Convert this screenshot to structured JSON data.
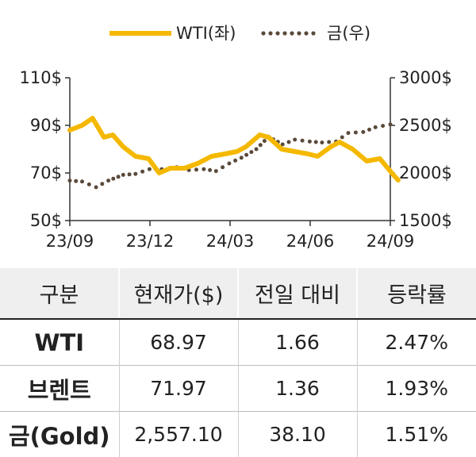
{
  "chart_data": {
    "type": "line",
    "x_labels": [
      "23/09",
      "23/12",
      "24/03",
      "24/06",
      "24/09"
    ],
    "y_left": {
      "ticks": [
        "110$",
        "90$",
        "70$",
        "50$"
      ],
      "range": [
        50,
        110
      ]
    },
    "y_right": {
      "ticks": [
        "3000$",
        "2500$",
        "2000$",
        "1500$"
      ],
      "range": [
        1500,
        3000
      ]
    },
    "series": [
      {
        "name": "WTI(좌)",
        "axis": "left",
        "style": "solid",
        "color": "#f5b800",
        "x": [
          "2023-09-01",
          "2023-09-15",
          "2023-09-27",
          "2023-10-10",
          "2023-10-20",
          "2023-11-01",
          "2023-11-15",
          "2023-11-30",
          "2023-12-12",
          "2023-12-25",
          "2024-01-10",
          "2024-01-25",
          "2024-02-10",
          "2024-02-25",
          "2024-03-10",
          "2024-03-20",
          "2024-04-05",
          "2024-04-15",
          "2024-04-30",
          "2024-05-15",
          "2024-05-30",
          "2024-06-10",
          "2024-06-25",
          "2024-07-05",
          "2024-07-20",
          "2024-08-05",
          "2024-08-20",
          "2024-09-05",
          "2024-09-10"
        ],
        "values": [
          88,
          90,
          93,
          85,
          86,
          81,
          77,
          76,
          70,
          72,
          72,
          74,
          77,
          78,
          79,
          81,
          86,
          85,
          80,
          79,
          78,
          77,
          81,
          83,
          80,
          75,
          76,
          69,
          67
        ]
      },
      {
        "name": "금(우)",
        "axis": "right",
        "style": "dotted",
        "color": "#5a4a3a",
        "x": [
          "2023-09-01",
          "2023-09-15",
          "2023-10-01",
          "2023-10-15",
          "2023-11-01",
          "2023-11-15",
          "2023-12-01",
          "2023-12-15",
          "2024-01-01",
          "2024-01-15",
          "2024-02-01",
          "2024-02-15",
          "2024-03-01",
          "2024-03-15",
          "2024-04-01",
          "2024-04-15",
          "2024-05-01",
          "2024-05-15",
          "2024-06-01",
          "2024-06-15",
          "2024-07-01",
          "2024-07-15",
          "2024-08-01",
          "2024-08-15",
          "2024-09-01",
          "2024-09-10"
        ],
        "values": [
          1920,
          1910,
          1850,
          1920,
          1980,
          1990,
          2040,
          2040,
          2060,
          2030,
          2040,
          2020,
          2100,
          2160,
          2250,
          2380,
          2300,
          2350,
          2330,
          2320,
          2330,
          2420,
          2430,
          2480,
          2510,
          2500
        ]
      }
    ]
  },
  "table": {
    "headers": [
      "구분",
      "현재가($)",
      "전일 대비",
      "등락률"
    ],
    "rows": [
      [
        "WTI",
        "68.97",
        "1.66",
        "2.47%"
      ],
      [
        "브렌트",
        "71.97",
        "1.36",
        "1.93%"
      ],
      [
        "금(Gold)",
        "2,557.10",
        "38.10",
        "1.51%"
      ]
    ]
  }
}
